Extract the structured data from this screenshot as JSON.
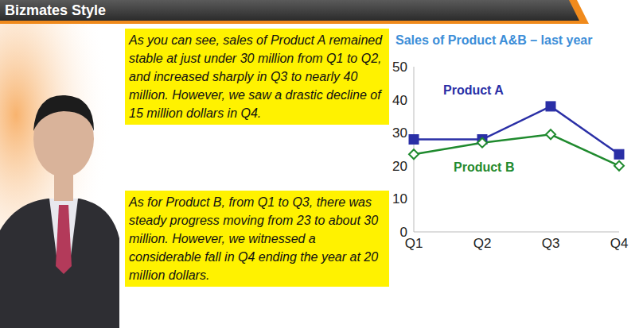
{
  "header": {
    "title": "Bizmates Style"
  },
  "paragraphs": [
    "As you can see, sales of Product A remained stable at just under 30 million from Q1 to Q2, and increased sharply in Q3 to nearly 40 million. However, we saw a drastic decline of 15 million dollars in Q4.",
    "As for Product B, from Q1 to Q3, there was steady progress moving from 23 to about 30 million. However, we witnessed a considerable fall in Q4 ending the year at 20 million dollars."
  ],
  "chart_data": {
    "type": "line",
    "title": "Sales of Product A&B – last year",
    "categories": [
      "Q1",
      "Q2",
      "Q3",
      "Q4"
    ],
    "series": [
      {
        "name": "Product A",
        "color": "#2a2fa6",
        "marker": "square",
        "values": [
          28,
          28,
          38,
          23.5
        ]
      },
      {
        "name": "Product B",
        "color": "#1f8a2e",
        "marker": "diamond",
        "values": [
          23.5,
          27,
          29.5,
          20
        ]
      }
    ],
    "ylim": [
      0,
      50
    ],
    "yticks": [
      0,
      10,
      20,
      30,
      40,
      50
    ],
    "grid": false
  }
}
